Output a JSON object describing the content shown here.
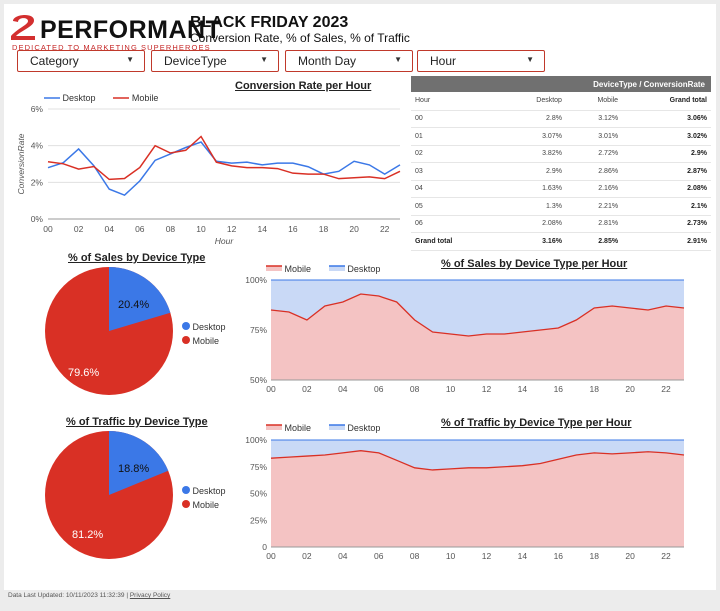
{
  "logo": {
    "word": "PERFORMANT",
    "tagline": "DEDICATED TO MARKETING SUPERHEROES",
    "mark_icon": "performant-2-logo"
  },
  "header": {
    "title": "BLACK FRIDAY 2023",
    "subtitle": "Conversion Rate, % of Sales, % of Traffic"
  },
  "filters": [
    {
      "label": "Category"
    },
    {
      "label": "DeviceType"
    },
    {
      "label": "Month Day"
    },
    {
      "label": "Hour"
    }
  ],
  "colors": {
    "desktop": "#3b78e7",
    "mobile": "#d93025",
    "mobile_fill": "#f4c3c3",
    "desktop_fill": "#c9d9f6",
    "accent": "#c0392b"
  },
  "conversion_chart": {
    "title": "Conversion Rate per Hour",
    "ylabel": "ConversionRate",
    "xlabel": "Hour",
    "legend": [
      "Desktop",
      "Mobile"
    ],
    "yticks": [
      "0%",
      "2%",
      "4%",
      "6%"
    ],
    "xticks": [
      "00",
      "02",
      "04",
      "06",
      "08",
      "10",
      "12",
      "14",
      "16",
      "18",
      "20",
      "22"
    ]
  },
  "pivot": {
    "header": "DeviceType / ConversionRate",
    "columns": [
      "Hour",
      "Desktop",
      "Mobile",
      "Grand total"
    ],
    "rows": [
      [
        "00",
        "2.8%",
        "3.12%",
        "3.06%"
      ],
      [
        "01",
        "3.07%",
        "3.01%",
        "3.02%"
      ],
      [
        "02",
        "3.82%",
        "2.72%",
        "2.9%"
      ],
      [
        "03",
        "2.9%",
        "2.86%",
        "2.87%"
      ],
      [
        "04",
        "1.63%",
        "2.16%",
        "2.08%"
      ],
      [
        "05",
        "1.3%",
        "2.21%",
        "2.1%"
      ],
      [
        "06",
        "2.08%",
        "2.81%",
        "2.73%"
      ]
    ],
    "grand_total": [
      "Grand total",
      "3.16%",
      "2.85%",
      "2.91%"
    ]
  },
  "sales_pie": {
    "title": "% of Sales by Device Type",
    "desktop_label": "20.4%",
    "mobile_label": "79.6%",
    "legend": [
      "Desktop",
      "Mobile"
    ]
  },
  "traffic_pie": {
    "title": "% of Traffic by Device Type",
    "desktop_label": "18.8%",
    "mobile_label": "81.2%",
    "legend": [
      "Desktop",
      "Mobile"
    ]
  },
  "sales_area": {
    "title": "% of Sales by Device Type per Hour",
    "legend": [
      "Mobile",
      "Desktop"
    ],
    "yticks": [
      "50%",
      "75%",
      "100%"
    ],
    "xticks": [
      "00",
      "02",
      "04",
      "06",
      "08",
      "10",
      "12",
      "14",
      "16",
      "18",
      "20",
      "22"
    ]
  },
  "traffic_area": {
    "title": "% of Traffic by Device Type per Hour",
    "legend": [
      "Mobile",
      "Desktop"
    ],
    "yticks": [
      "0",
      "25%",
      "50%",
      "75%",
      "100%"
    ],
    "xticks": [
      "00",
      "02",
      "04",
      "06",
      "08",
      "10",
      "12",
      "14",
      "16",
      "18",
      "20",
      "22"
    ]
  },
  "footer": {
    "updated": "Data Last Updated: 10/11/2023 11:32:39",
    "separator": "|",
    "privacy": "Privacy Policy"
  },
  "chart_data": [
    {
      "type": "line",
      "title": "Conversion Rate per Hour",
      "xlabel": "Hour",
      "ylabel": "ConversionRate",
      "ylim": [
        0,
        6
      ],
      "x": [
        0,
        1,
        2,
        3,
        4,
        5,
        6,
        7,
        8,
        9,
        10,
        11,
        12,
        13,
        14,
        15,
        16,
        17,
        18,
        19,
        20,
        21,
        22,
        23
      ],
      "series": [
        {
          "name": "Desktop",
          "values": [
            2.8,
            3.07,
            3.82,
            2.9,
            1.63,
            1.3,
            2.08,
            3.2,
            3.55,
            3.9,
            4.2,
            3.15,
            3.05,
            3.1,
            2.95,
            3.05,
            3.05,
            2.85,
            2.45,
            2.6,
            3.15,
            2.95,
            2.45,
            2.95
          ]
        },
        {
          "name": "Mobile",
          "values": [
            3.12,
            3.01,
            2.72,
            2.86,
            2.16,
            2.21,
            2.81,
            4.0,
            3.6,
            3.75,
            4.5,
            3.1,
            2.9,
            2.8,
            2.8,
            2.75,
            2.5,
            2.45,
            2.45,
            2.2,
            2.25,
            2.3,
            2.2,
            2.6
          ]
        }
      ],
      "legend": "top-left",
      "grid": true
    },
    {
      "type": "pie",
      "title": "% of Sales by Device Type",
      "categories": [
        "Desktop",
        "Mobile"
      ],
      "values": [
        20.4,
        79.6
      ]
    },
    {
      "type": "area",
      "title": "% of Sales by Device Type per Hour",
      "x": [
        0,
        1,
        2,
        3,
        4,
        5,
        6,
        7,
        8,
        9,
        10,
        11,
        12,
        13,
        14,
        15,
        16,
        17,
        18,
        19,
        20,
        21,
        22,
        23
      ],
      "series": [
        {
          "name": "Mobile",
          "values": [
            85,
            84,
            80,
            87,
            89,
            93,
            92,
            89,
            80,
            74,
            73,
            72,
            73,
            73,
            74,
            75,
            76,
            80,
            86,
            87,
            86,
            85,
            87,
            86
          ]
        },
        {
          "name": "Desktop",
          "values": [
            15,
            16,
            20,
            13,
            11,
            7,
            8,
            11,
            20,
            26,
            27,
            28,
            27,
            27,
            26,
            25,
            24,
            20,
            14,
            13,
            14,
            15,
            13,
            14
          ]
        }
      ],
      "ylim": [
        50,
        100
      ],
      "legend": "top-left"
    },
    {
      "type": "pie",
      "title": "% of Traffic by Device Type",
      "categories": [
        "Desktop",
        "Mobile"
      ],
      "values": [
        18.8,
        81.2
      ]
    },
    {
      "type": "area",
      "title": "% of Traffic by Device Type per Hour",
      "x": [
        0,
        1,
        2,
        3,
        4,
        5,
        6,
        7,
        8,
        9,
        10,
        11,
        12,
        13,
        14,
        15,
        16,
        17,
        18,
        19,
        20,
        21,
        22,
        23
      ],
      "series": [
        {
          "name": "Mobile",
          "values": [
            83,
            84,
            85,
            86,
            88,
            90,
            88,
            81,
            74,
            72,
            73,
            74,
            74,
            75,
            76,
            78,
            82,
            86,
            88,
            87,
            88,
            89,
            88,
            86
          ]
        },
        {
          "name": "Desktop",
          "values": [
            17,
            16,
            15,
            14,
            12,
            10,
            12,
            19,
            26,
            28,
            27,
            26,
            26,
            25,
            24,
            22,
            18,
            14,
            12,
            13,
            12,
            11,
            12,
            14
          ]
        }
      ],
      "ylim": [
        0,
        100
      ],
      "legend": "top-left"
    }
  ]
}
